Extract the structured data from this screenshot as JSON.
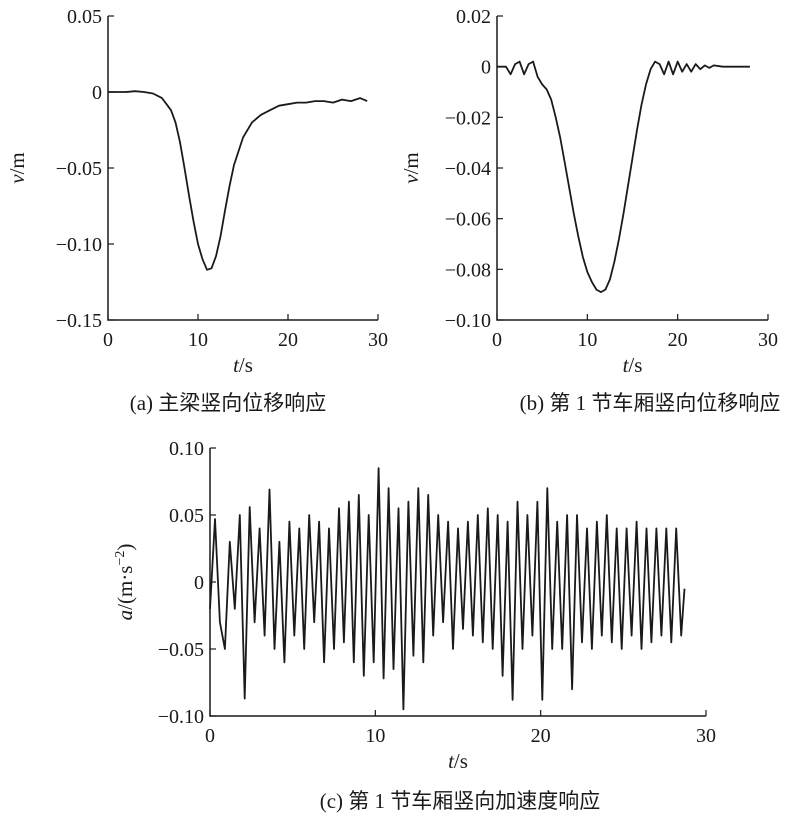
{
  "chart_data": [
    {
      "id": "a",
      "type": "line",
      "caption": "(a) 主梁竖向位移响应",
      "xlabel_var": "t",
      "xlabel_unit": "/s",
      "ylabel_var": "v",
      "ylabel_unit": "/m",
      "xlim": [
        0,
        30
      ],
      "ylim": [
        -0.15,
        0.05
      ],
      "xticks": [
        0,
        10,
        20,
        30
      ],
      "xtick_labels": [
        "0",
        "10",
        "20",
        "30"
      ],
      "yticks": [
        0.05,
        0,
        -0.05,
        -0.1,
        -0.15
      ],
      "ytick_labels": [
        "0.05",
        "0",
        "−0.05",
        "−0.10",
        "−0.15"
      ],
      "grid": false,
      "series": [
        {
          "x": [
            0,
            2,
            3,
            4,
            5,
            6,
            7,
            7.5,
            8,
            8.5,
            9,
            9.5,
            10,
            10.5,
            11,
            11.5,
            12,
            12.5,
            13,
            13.5,
            14,
            15,
            16,
            17,
            18,
            19,
            20,
            21,
            22,
            23,
            24,
            25,
            26,
            27,
            28,
            28.8
          ],
          "y": [
            0,
            0,
            0.0005,
            0,
            -0.001,
            -0.004,
            -0.012,
            -0.02,
            -0.033,
            -0.05,
            -0.068,
            -0.085,
            -0.1,
            -0.11,
            -0.117,
            -0.116,
            -0.108,
            -0.095,
            -0.078,
            -0.062,
            -0.048,
            -0.03,
            -0.02,
            -0.015,
            -0.012,
            -0.009,
            -0.008,
            -0.007,
            -0.007,
            -0.006,
            -0.006,
            -0.007,
            -0.005,
            -0.006,
            -0.004,
            -0.006
          ]
        }
      ]
    },
    {
      "id": "b",
      "type": "line",
      "caption": "(b) 第 1 节车厢竖向位移响应",
      "xlabel_var": "t",
      "xlabel_unit": "/s",
      "ylabel_var": "v",
      "ylabel_unit": "/m",
      "xlim": [
        0,
        30
      ],
      "ylim": [
        -0.1,
        0.02
      ],
      "xticks": [
        0,
        10,
        20,
        30
      ],
      "xtick_labels": [
        "0",
        "10",
        "20",
        "30"
      ],
      "yticks": [
        0.02,
        0,
        -0.02,
        -0.04,
        -0.06,
        -0.08,
        -0.1
      ],
      "ytick_labels": [
        "0.02",
        "0",
        "−0.02",
        "−0.04",
        "−0.06",
        "−0.08",
        "−0.10"
      ],
      "grid": false,
      "series": [
        {
          "x": [
            0,
            1,
            1.5,
            2,
            2.5,
            3,
            3.5,
            4,
            4.5,
            5,
            5.5,
            6,
            6.5,
            7,
            7.5,
            8,
            8.5,
            9,
            9.5,
            10,
            10.5,
            11,
            11.5,
            12,
            12.5,
            13,
            13.5,
            14,
            14.5,
            15,
            15.5,
            16,
            16.5,
            17,
            17.5,
            18,
            18.5,
            19,
            19.5,
            20,
            20.5,
            21,
            21.5,
            22,
            22.5,
            23,
            23.5,
            24,
            25,
            26,
            27,
            28
          ],
          "y": [
            0,
            0,
            -0.003,
            0.001,
            0.002,
            -0.003,
            0.001,
            0.002,
            -0.004,
            -0.007,
            -0.009,
            -0.013,
            -0.02,
            -0.028,
            -0.038,
            -0.048,
            -0.058,
            -0.067,
            -0.075,
            -0.081,
            -0.085,
            -0.088,
            -0.089,
            -0.088,
            -0.084,
            -0.077,
            -0.068,
            -0.058,
            -0.047,
            -0.036,
            -0.025,
            -0.015,
            -0.007,
            -0.001,
            0.002,
            0.001,
            -0.003,
            0.002,
            -0.003,
            0.002,
            -0.002,
            0.001,
            -0.002,
            0.001,
            -0.001,
            0.0005,
            -0.0005,
            0.0005,
            0,
            0,
            0,
            0
          ]
        }
      ]
    },
    {
      "id": "c",
      "type": "line",
      "caption": "(c) 第 1 节车厢竖向加速度响应",
      "xlabel_var": "t",
      "xlabel_unit": "/s",
      "ylabel_var": "a",
      "ylabel_unit": "/(m·s",
      "ylabel_sup": "−2",
      "ylabel_close": ")",
      "xlim": [
        0,
        30
      ],
      "ylim": [
        -0.1,
        0.1
      ],
      "xticks": [
        0,
        10,
        20,
        30
      ],
      "xtick_labels": [
        "0",
        "10",
        "20",
        "30"
      ],
      "yticks": [
        0.1,
        0.05,
        0,
        -0.05,
        -0.1
      ],
      "ytick_labels": [
        "0.10",
        "0.05",
        "0",
        "−0.05",
        "−0.10"
      ],
      "grid": false,
      "series": [
        {
          "x": [
            0.0,
            0.3,
            0.6,
            0.9,
            1.2,
            1.5,
            1.8,
            2.1,
            2.4,
            2.7,
            3.0,
            3.3,
            3.6,
            3.9,
            4.2,
            4.5,
            4.8,
            5.1,
            5.4,
            5.7,
            6.0,
            6.3,
            6.6,
            6.9,
            7.2,
            7.5,
            7.8,
            8.1,
            8.4,
            8.7,
            9.0,
            9.3,
            9.6,
            9.9,
            10.2,
            10.5,
            10.8,
            11.1,
            11.4,
            11.7,
            12.0,
            12.3,
            12.6,
            12.9,
            13.2,
            13.5,
            13.8,
            14.1,
            14.4,
            14.7,
            15.0,
            15.3,
            15.6,
            15.9,
            16.2,
            16.5,
            16.8,
            17.1,
            17.4,
            17.7,
            18.0,
            18.3,
            18.6,
            18.9,
            19.2,
            19.5,
            19.8,
            20.1,
            20.4,
            20.7,
            21.0,
            21.3,
            21.6,
            21.9,
            22.2,
            22.5,
            22.8,
            23.1,
            23.4,
            23.7,
            24.0,
            24.3,
            24.6,
            24.9,
            25.2,
            25.5,
            25.8,
            26.1,
            26.4,
            26.7,
            27.0,
            27.3,
            27.6,
            27.9,
            28.2,
            28.5,
            28.7
          ],
          "y": [
            -0.02,
            0.047,
            -0.03,
            -0.05,
            0.03,
            -0.02,
            0.05,
            -0.087,
            0.056,
            -0.03,
            0.04,
            -0.04,
            0.069,
            -0.05,
            0.03,
            -0.06,
            0.045,
            -0.04,
            0.04,
            -0.05,
            0.05,
            -0.03,
            0.045,
            -0.06,
            0.04,
            -0.05,
            0.055,
            -0.045,
            0.06,
            -0.06,
            0.065,
            -0.07,
            0.05,
            -0.06,
            0.085,
            -0.072,
            0.07,
            -0.065,
            0.055,
            -0.095,
            0.06,
            -0.055,
            0.07,
            -0.06,
            0.065,
            -0.04,
            0.05,
            -0.03,
            0.045,
            -0.05,
            0.04,
            -0.035,
            0.045,
            -0.04,
            0.05,
            -0.045,
            0.055,
            -0.05,
            0.05,
            -0.07,
            0.045,
            -0.088,
            0.06,
            -0.05,
            0.05,
            -0.04,
            0.06,
            -0.088,
            0.07,
            -0.05,
            0.045,
            -0.05,
            0.05,
            -0.08,
            0.05,
            -0.045,
            0.04,
            -0.05,
            0.045,
            -0.04,
            0.05,
            -0.045,
            0.04,
            -0.05,
            0.04,
            -0.04,
            0.045,
            -0.05,
            0.04,
            -0.045,
            0.04,
            -0.04,
            0.04,
            -0.045,
            0.04,
            -0.04,
            -0.005
          ]
        }
      ]
    }
  ]
}
